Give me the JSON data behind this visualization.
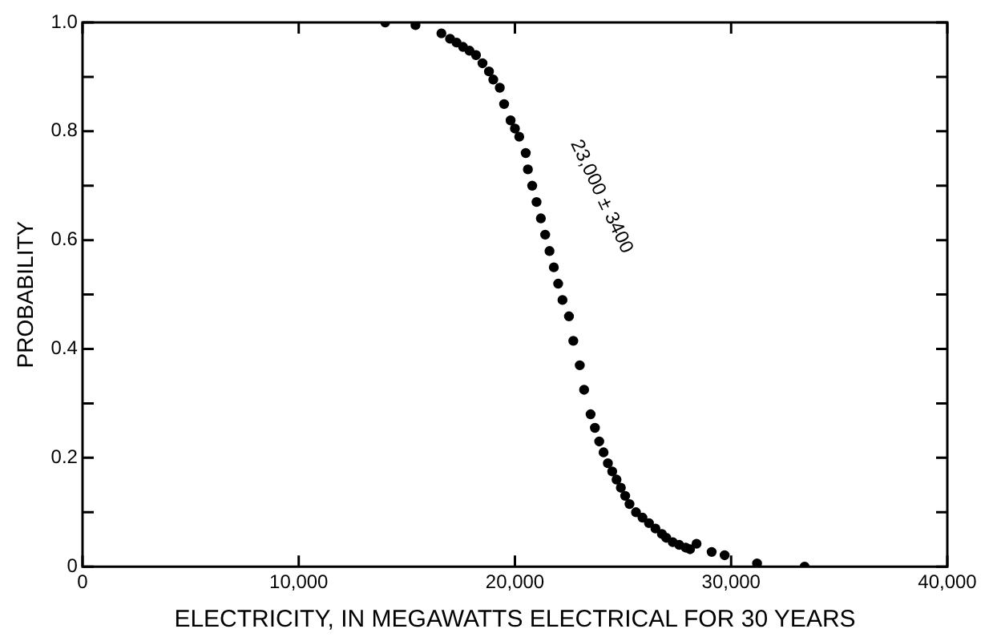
{
  "chart_data": {
    "type": "scatter",
    "xlabel": "ELECTRICITY, IN MEGAWATTS ELECTRICAL FOR 30 YEARS",
    "ylabel": "PROBABILITY",
    "series": [
      {
        "color": "#000000",
        "x": [
          14000,
          15400,
          16600,
          17000,
          17300,
          17600,
          17900,
          18200,
          18500,
          18800,
          19000,
          19300,
          19500,
          19800,
          20000,
          20200,
          20500,
          20600,
          20800,
          21000,
          21200,
          21400,
          21600,
          21800,
          22000,
          22200,
          22500,
          22700,
          23000,
          23200,
          23500,
          23700,
          23900,
          24100,
          24300,
          24500,
          24700,
          24900,
          25100,
          25300,
          25600,
          25900,
          26200,
          26500,
          26800,
          27000,
          27300,
          27600,
          27900,
          28100,
          28400,
          29100,
          29700,
          31200,
          33400
        ],
        "values": [
          1.0,
          0.995,
          0.98,
          0.97,
          0.963,
          0.955,
          0.948,
          0.94,
          0.925,
          0.91,
          0.895,
          0.88,
          0.85,
          0.82,
          0.805,
          0.79,
          0.76,
          0.73,
          0.7,
          0.67,
          0.64,
          0.61,
          0.58,
          0.55,
          0.52,
          0.49,
          0.46,
          0.415,
          0.37,
          0.325,
          0.28,
          0.255,
          0.23,
          0.21,
          0.19,
          0.175,
          0.16,
          0.145,
          0.13,
          0.115,
          0.1,
          0.09,
          0.08,
          0.07,
          0.06,
          0.053,
          0.045,
          0.04,
          0.035,
          0.032,
          0.042,
          0.027,
          0.021,
          0.006,
          0
        ]
      }
    ],
    "xlim": [
      0,
      40000
    ],
    "xticks": [
      {
        "value": 0,
        "label": "0"
      },
      {
        "value": 10000,
        "label": "10,000"
      },
      {
        "value": 20000,
        "label": "20,000"
      },
      {
        "value": 30000,
        "label": "30,000"
      },
      {
        "value": 40000,
        "label": "40,000"
      }
    ],
    "ylim": [
      0,
      1
    ],
    "yticks": [
      {
        "value": 0,
        "label": "0"
      },
      {
        "value": 0.1,
        "label": null
      },
      {
        "value": 0.2,
        "label": "0.2"
      },
      {
        "value": 0.3,
        "label": null
      },
      {
        "value": 0.4,
        "label": "0.4"
      },
      {
        "value": 0.5,
        "label": null
      },
      {
        "value": 0.6,
        "label": "0.6"
      },
      {
        "value": 0.7,
        "label": null
      },
      {
        "value": 0.8,
        "label": "0.8"
      },
      {
        "value": 0.9,
        "label": null
      },
      {
        "value": 1,
        "label": "1.0"
      }
    ],
    "annotations": [
      "23,000 ± 3400"
    ],
    "marker": "circle",
    "grid": false,
    "legend": false
  }
}
